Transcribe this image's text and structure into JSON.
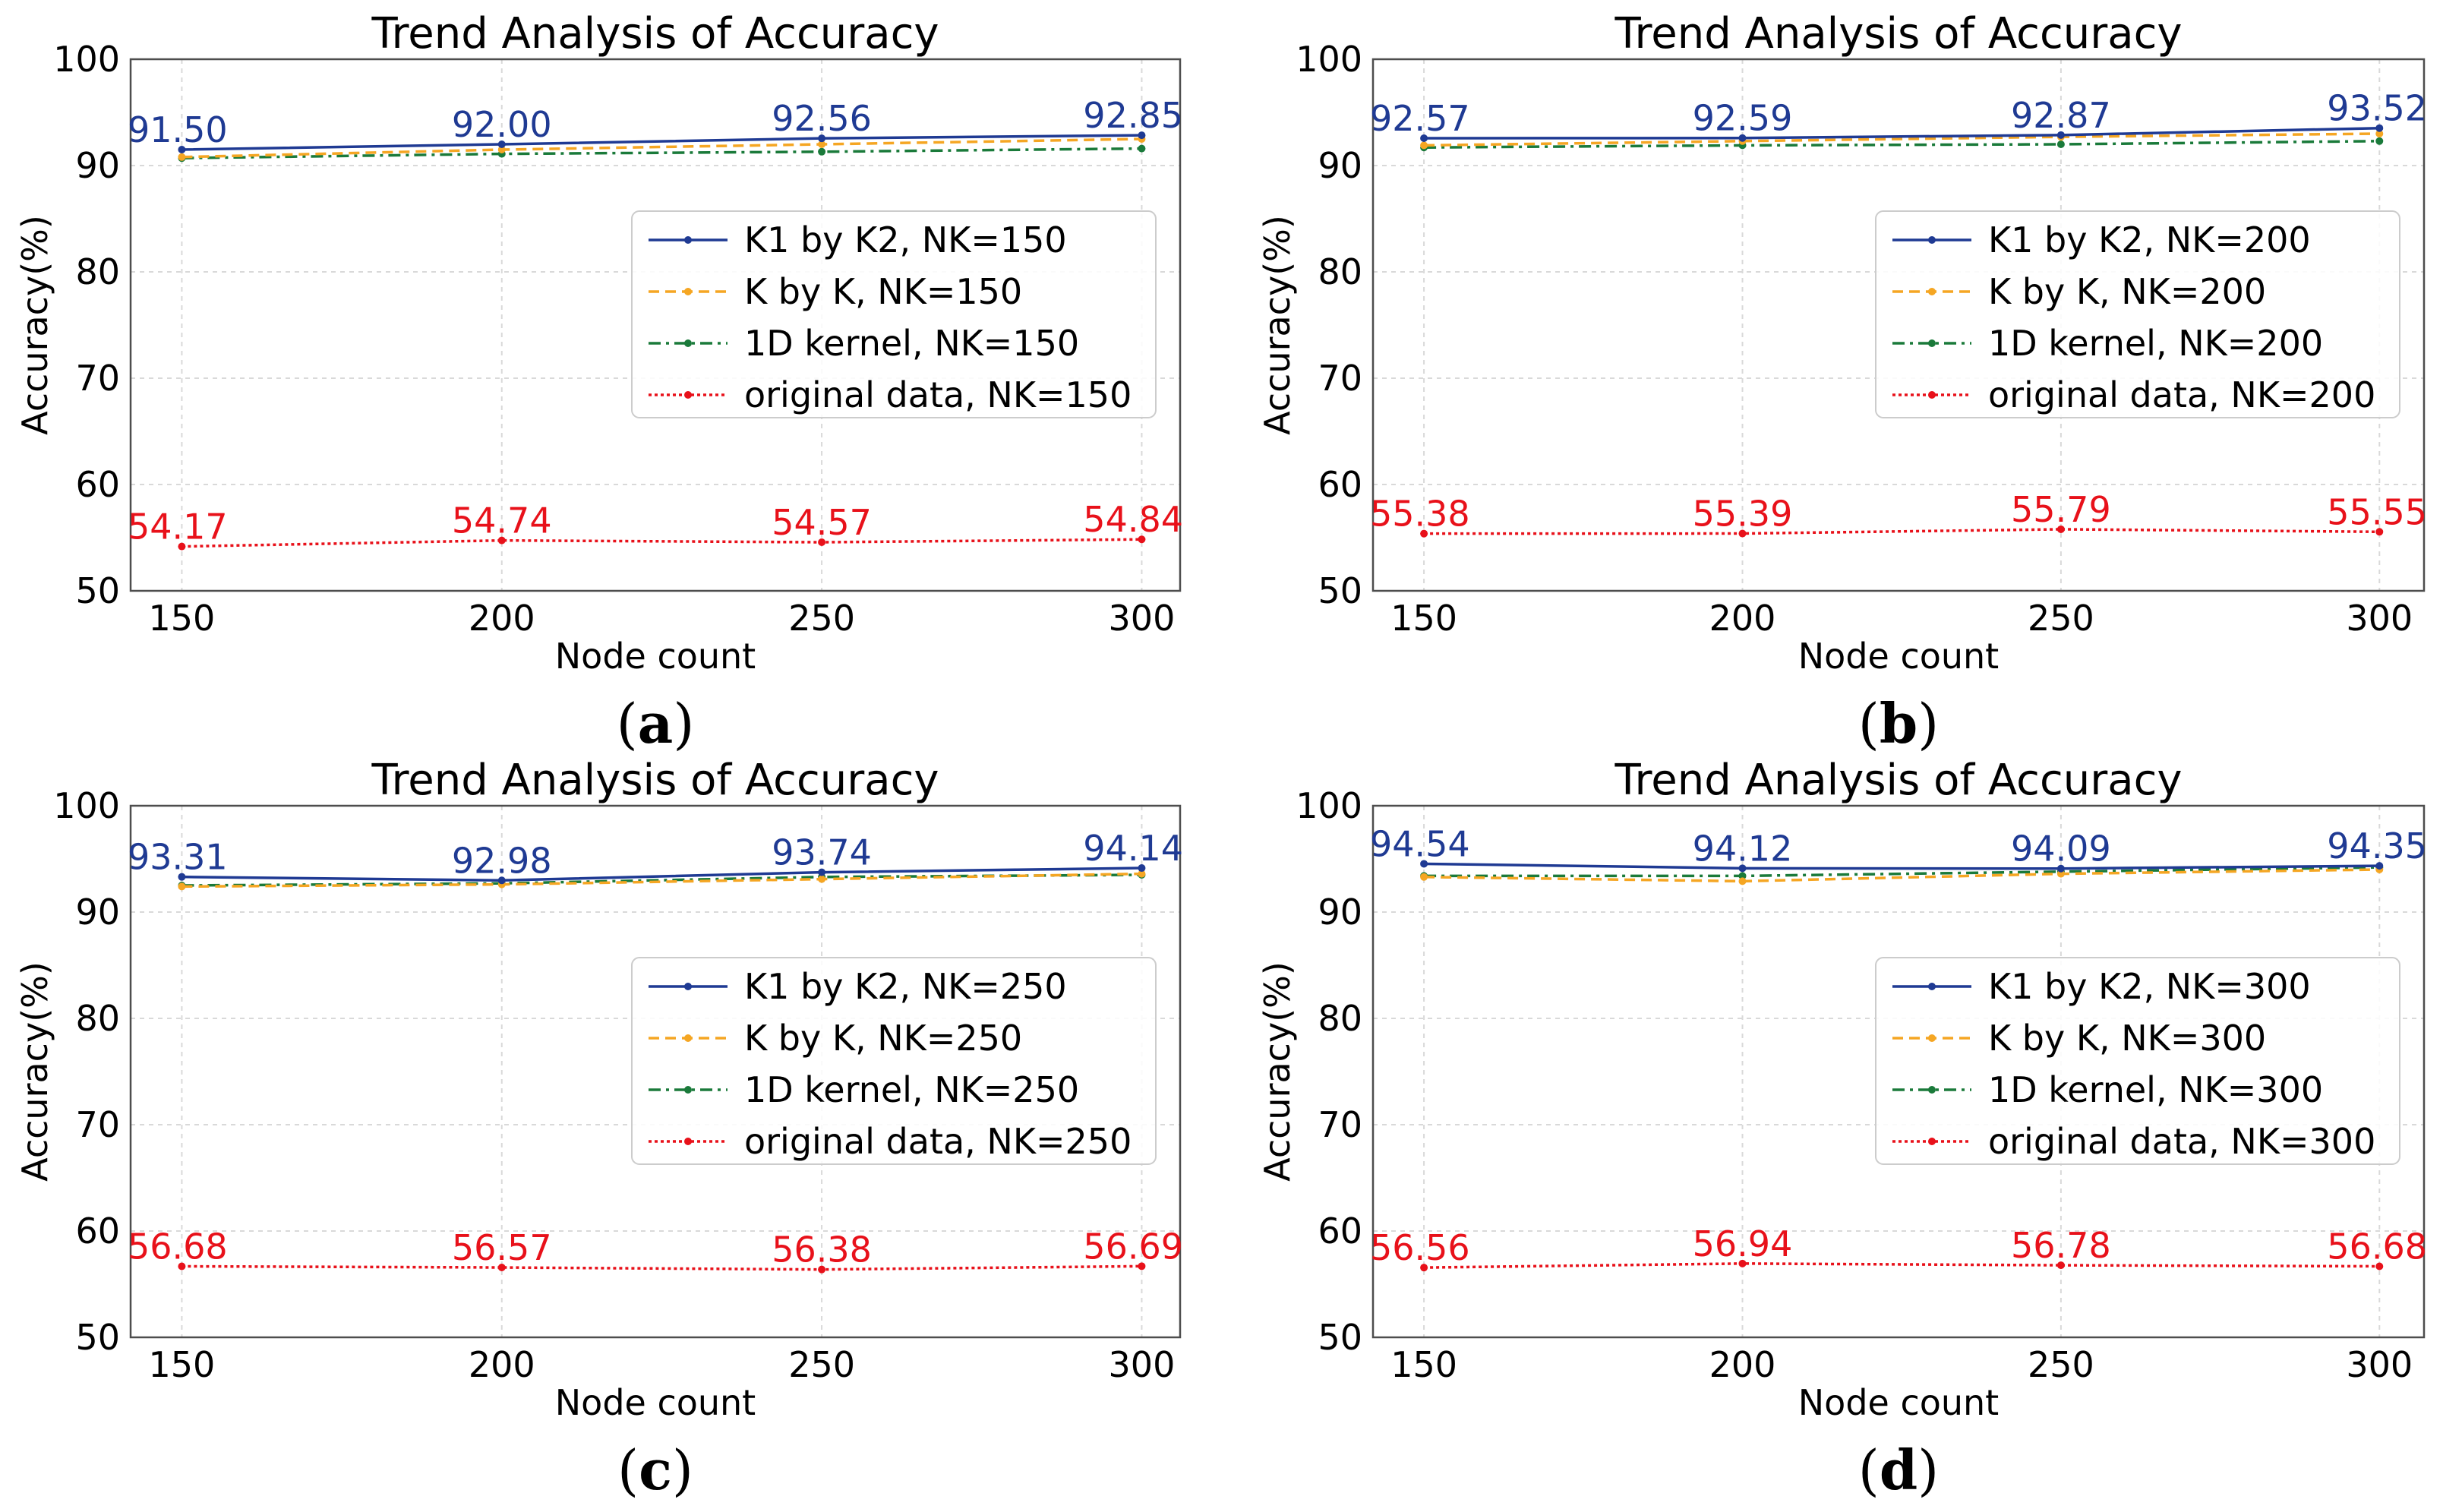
{
  "chart_data": [
    {
      "type": "line",
      "panel_label": "(a)",
      "title": "Trend Analysis of Accuracy",
      "xlabel": "Node count",
      "ylabel": "Accuracy(%)",
      "x": [
        150,
        200,
        250,
        300
      ],
      "xlim": [
        142,
        306
      ],
      "ylim": [
        50,
        100
      ],
      "xticks": [
        150,
        200,
        250,
        300
      ],
      "yticks": [
        50,
        60,
        70,
        80,
        90,
        100
      ],
      "grid": true,
      "legend_position": "center-right",
      "series": [
        {
          "name": "K1 by K2, NK=150",
          "values": [
            91.5,
            92.0,
            92.56,
            92.85
          ],
          "color": "#1f3a93",
          "dash": "solid",
          "labels": [
            "91.50",
            "92.00",
            "92.56",
            "92.85"
          ]
        },
        {
          "name": "K by K, NK=150",
          "values": [
            90.8,
            91.5,
            92.0,
            92.5
          ],
          "color": "#f5a623",
          "dash": "dashed"
        },
        {
          "name": "1D kernel, NK=150",
          "values": [
            90.7,
            91.1,
            91.3,
            91.6
          ],
          "color": "#1a7a3a",
          "dash": "dashdot"
        },
        {
          "name": "original data, NK=150",
          "values": [
            54.17,
            54.74,
            54.57,
            54.84
          ],
          "color": "#e8111a",
          "dash": "dotted",
          "labels": [
            "54.17",
            "54.74",
            "54.57",
            "54.84"
          ]
        }
      ]
    },
    {
      "type": "line",
      "panel_label": "(b)",
      "title": "Trend Analysis of Accuracy",
      "xlabel": "Node count",
      "ylabel": "Accuracy(%)",
      "x": [
        150,
        200,
        250,
        300
      ],
      "xlim": [
        142,
        307
      ],
      "ylim": [
        50,
        100
      ],
      "xticks": [
        150,
        200,
        250,
        300
      ],
      "yticks": [
        50,
        60,
        70,
        80,
        90,
        100
      ],
      "grid": true,
      "legend_position": "center-right",
      "series": [
        {
          "name": "K1 by K2, NK=200",
          "values": [
            92.57,
            92.59,
            92.87,
            93.52
          ],
          "color": "#1f3a93",
          "dash": "solid",
          "labels": [
            "92.57",
            "92.59",
            "92.87",
            "93.52"
          ]
        },
        {
          "name": "K by K, NK=200",
          "values": [
            91.9,
            92.3,
            92.7,
            93.0
          ],
          "color": "#f5a623",
          "dash": "dashed"
        },
        {
          "name": "1D kernel, NK=200",
          "values": [
            91.7,
            91.9,
            92.0,
            92.3
          ],
          "color": "#1a7a3a",
          "dash": "dashdot"
        },
        {
          "name": "original data, NK=200",
          "values": [
            55.38,
            55.39,
            55.79,
            55.55
          ],
          "color": "#e8111a",
          "dash": "dotted",
          "labels": [
            "55.38",
            "55.39",
            "55.79",
            "55.55"
          ]
        }
      ]
    },
    {
      "type": "line",
      "panel_label": "(c)",
      "title": "Trend Analysis of Accuracy",
      "xlabel": "Node count",
      "ylabel": "Accuracy(%)",
      "x": [
        150,
        200,
        250,
        300
      ],
      "xlim": [
        142,
        306
      ],
      "ylim": [
        50,
        100
      ],
      "xticks": [
        150,
        200,
        250,
        300
      ],
      "yticks": [
        50,
        60,
        70,
        80,
        90,
        100
      ],
      "grid": true,
      "legend_position": "center-right",
      "series": [
        {
          "name": "K1 by K2, NK=250",
          "values": [
            93.31,
            92.98,
            93.74,
            94.14
          ],
          "color": "#1f3a93",
          "dash": "solid",
          "labels": [
            "93.31",
            "92.98",
            "93.74",
            "94.14"
          ]
        },
        {
          "name": "K by K, NK=250",
          "values": [
            92.4,
            92.6,
            93.1,
            93.6
          ],
          "color": "#f5a623",
          "dash": "dashed"
        },
        {
          "name": "1D kernel, NK=250",
          "values": [
            92.5,
            92.7,
            93.3,
            93.5
          ],
          "color": "#1a7a3a",
          "dash": "dashdot"
        },
        {
          "name": "original data, NK=250",
          "values": [
            56.68,
            56.57,
            56.38,
            56.69
          ],
          "color": "#e8111a",
          "dash": "dotted",
          "labels": [
            "56.68",
            "56.57",
            "56.38",
            "56.69"
          ]
        }
      ]
    },
    {
      "type": "line",
      "panel_label": "(d)",
      "title": "Trend Analysis of Accuracy",
      "xlabel": "Node count",
      "ylabel": "Accuracy(%)",
      "x": [
        150,
        200,
        250,
        300
      ],
      "xlim": [
        142,
        307
      ],
      "ylim": [
        50,
        100
      ],
      "xticks": [
        150,
        200,
        250,
        300
      ],
      "yticks": [
        50,
        60,
        70,
        80,
        90,
        100
      ],
      "grid": true,
      "legend_position": "center-right",
      "series": [
        {
          "name": "K1 by K2, NK=300",
          "values": [
            94.54,
            94.12,
            94.09,
            94.35
          ],
          "color": "#1f3a93",
          "dash": "solid",
          "labels": [
            "94.54",
            "94.12",
            "94.09",
            "94.35"
          ]
        },
        {
          "name": "K by K, NK=300",
          "values": [
            93.3,
            92.9,
            93.6,
            94.0
          ],
          "color": "#f5a623",
          "dash": "dashed"
        },
        {
          "name": "1D kernel, NK=300",
          "values": [
            93.4,
            93.4,
            93.8,
            94.2
          ],
          "color": "#1a7a3a",
          "dash": "dashdot"
        },
        {
          "name": "original data, NK=300",
          "values": [
            56.56,
            56.94,
            56.78,
            56.68
          ],
          "color": "#e8111a",
          "dash": "dotted",
          "labels": [
            "56.56",
            "56.94",
            "56.78",
            "56.68"
          ]
        }
      ]
    }
  ]
}
